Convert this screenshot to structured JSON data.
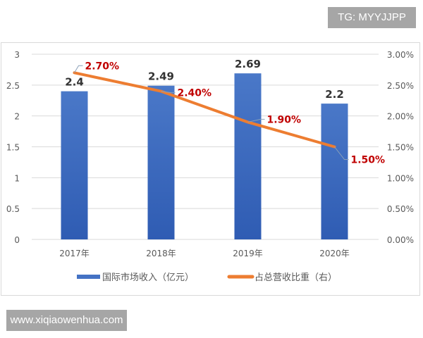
{
  "watermarks": {
    "top": "TG: MYYJJPP",
    "bottom": "www.xiqiaowenhua.com"
  },
  "colors": {
    "bar": "#4472c4",
    "bar_dark": "#3461b8",
    "line": "#ed7d31",
    "line_label": "#c00000",
    "bar_label": "#333333",
    "axis_text": "#595959",
    "grid": "#d9d9d9"
  },
  "chart_data": {
    "type": "bar+line",
    "title": "",
    "categories": [
      "2017年",
      "2018年",
      "2019年",
      "2020年"
    ],
    "series": [
      {
        "name": "国际市场收入（亿元）",
        "type": "bar",
        "axis": "left",
        "values": [
          2.4,
          2.49,
          2.69,
          2.2
        ],
        "labels": [
          "2.4",
          "2.49",
          "2.69",
          "2.2"
        ]
      },
      {
        "name": "占总营收比重（右）",
        "type": "line",
        "axis": "right",
        "values": [
          2.7,
          2.4,
          1.9,
          1.5
        ],
        "labels": [
          "2.70%",
          "2.40%",
          "1.90%",
          "1.50%"
        ]
      }
    ],
    "left_axis": {
      "ylim": [
        0,
        3
      ],
      "ticks": [
        "0",
        "0.5",
        "1",
        "1.5",
        "2",
        "2.5",
        "3"
      ]
    },
    "right_axis": {
      "ylim": [
        0,
        3
      ],
      "ticks": [
        "0.00%",
        "0.50%",
        "1.00%",
        "1.50%",
        "2.00%",
        "2.50%",
        "3.00%"
      ]
    },
    "grid": true,
    "legend_position": "bottom",
    "xlabel": "",
    "ylabel": ""
  }
}
